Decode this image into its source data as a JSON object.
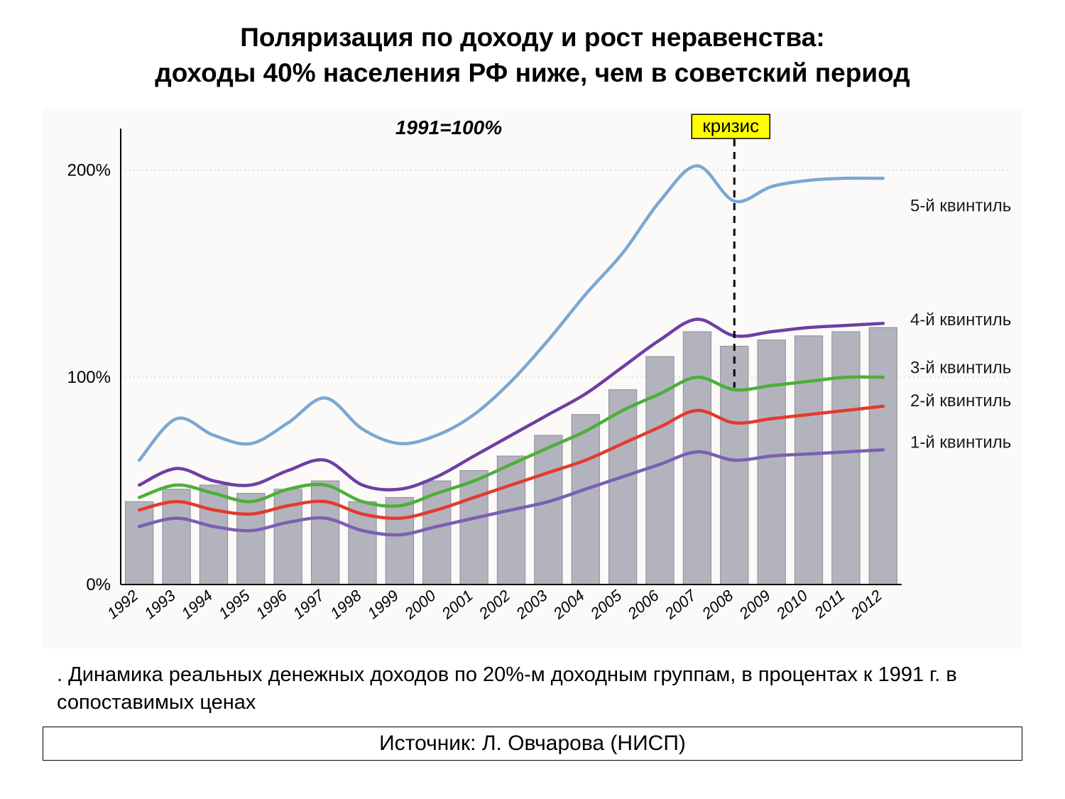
{
  "title_line1": "Поляризация по доходу и рост неравенства:",
  "title_line2": "доходы 40% населения РФ ниже, чем в советский период",
  "baseline_label": "1991=100%",
  "crisis_label": "кризис",
  "crisis_label_bg": "#ffff00",
  "crisis_year": "2008",
  "caption": ". Динамика реальных денежных доходов по 20%-м доходным группам, в процентах к 1991 г. в сопоставимых ценах",
  "source": "Источник: Л. Овчарова (НИСП)",
  "chart": {
    "type": "line+bar",
    "background_color": "#fcfaf8",
    "grid_color": "#d8d6d2",
    "axis_color": "#000000",
    "axis_fontsize": 24,
    "baseline_fontsize": 28,
    "baseline_fontstyle": "italic",
    "series_label_fontsize": 24,
    "series_label_color": "#1a1a1a",
    "crisis_label_fontsize": 26,
    "crisis_label_border": "#000000",
    "crisis_line_dash": "10,8",
    "crisis_line_color": "#000000",
    "crisis_line_width": 3,
    "ylim": [
      0,
      220
    ],
    "y_ticks": [
      0,
      100,
      200
    ],
    "y_tick_labels": [
      "0%",
      "100%",
      "200%"
    ],
    "years": [
      "1992",
      "1993",
      "1994",
      "1995",
      "1996",
      "1997",
      "1998",
      "1999",
      "2000",
      "2001",
      "2002",
      "2003",
      "2004",
      "2005",
      "2006",
      "2007",
      "2008",
      "2009",
      "2010",
      "2011",
      "2012"
    ],
    "bars": {
      "color": "#b3b3bd",
      "border_color": "#8e8e98",
      "values": [
        40,
        46,
        48,
        44,
        46,
        50,
        40,
        42,
        50,
        55,
        62,
        72,
        82,
        94,
        110,
        122,
        115,
        118,
        120,
        122,
        124
      ]
    },
    "line_width": 4.5,
    "series": [
      {
        "name": "5-й квинтиль",
        "color": "#7aa8d4",
        "label_y": 180,
        "values": [
          60,
          80,
          72,
          68,
          78,
          90,
          75,
          68,
          72,
          82,
          98,
          118,
          140,
          160,
          185,
          202,
          185,
          192,
          195,
          196,
          196
        ]
      },
      {
        "name": "4-й квинтиль",
        "color": "#6d3fa3",
        "label_y": 125,
        "values": [
          48,
          56,
          50,
          48,
          55,
          60,
          48,
          46,
          52,
          62,
          72,
          82,
          92,
          105,
          118,
          128,
          120,
          122,
          124,
          125,
          126
        ]
      },
      {
        "name": "3-й квинтиль",
        "color": "#4caf3a",
        "label_y": 102,
        "values": [
          42,
          48,
          44,
          40,
          46,
          48,
          40,
          38,
          44,
          50,
          58,
          66,
          74,
          84,
          92,
          100,
          94,
          96,
          98,
          100,
          100
        ]
      },
      {
        "name": "2-й квинтиль",
        "color": "#e23b2e",
        "label_y": 86,
        "values": [
          36,
          40,
          36,
          34,
          38,
          40,
          34,
          32,
          36,
          42,
          48,
          54,
          60,
          68,
          76,
          84,
          78,
          80,
          82,
          84,
          86
        ]
      },
      {
        "name": "1-й квинтиль",
        "color": "#7a5fb3",
        "label_y": 66,
        "values": [
          28,
          32,
          28,
          26,
          30,
          32,
          26,
          24,
          28,
          32,
          36,
          40,
          46,
          52,
          58,
          64,
          60,
          62,
          63,
          64,
          65
        ]
      }
    ]
  }
}
